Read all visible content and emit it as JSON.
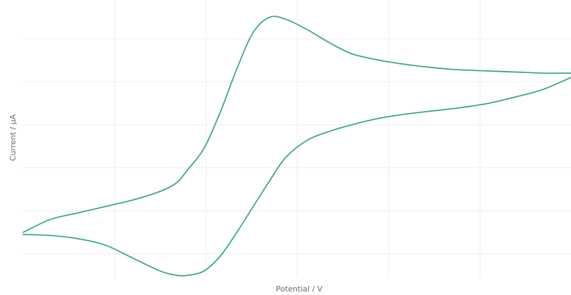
{
  "chart_data": {
    "type": "line",
    "xlabel": "Potential / V",
    "ylabel": "Current / µA",
    "xlim": [
      0,
      1
    ],
    "ylim": [
      -0.21,
      1.08
    ],
    "grid": true,
    "x_gridlines": [
      0.167,
      0.334,
      0.5,
      0.667,
      0.834
    ],
    "y_gridlines": [
      -0.1,
      0.1,
      0.3,
      0.5,
      0.7,
      0.9
    ],
    "line_color": "#3aa88e",
    "series": [
      {
        "x": [
          0.0,
          0.05,
          0.1,
          0.15,
          0.2,
          0.25,
          0.28,
          0.3,
          0.33,
          0.36,
          0.39,
          0.42,
          0.45,
          0.48,
          0.52,
          0.56,
          0.6,
          0.65,
          0.7,
          0.75,
          0.8,
          0.85,
          0.9,
          0.95,
          1.0
        ],
        "y": [
          0.0,
          0.06,
          0.09,
          0.12,
          0.15,
          0.19,
          0.23,
          0.29,
          0.39,
          0.56,
          0.76,
          0.93,
          1.0,
          0.99,
          0.94,
          0.88,
          0.83,
          0.8,
          0.78,
          0.765,
          0.755,
          0.75,
          0.745,
          0.74,
          0.74
        ]
      },
      {
        "x": [
          1.0,
          0.95,
          0.9,
          0.85,
          0.8,
          0.75,
          0.7,
          0.65,
          0.6,
          0.56,
          0.52,
          0.48,
          0.45,
          0.42,
          0.39,
          0.36,
          0.33,
          0.3,
          0.28,
          0.25,
          0.2,
          0.15,
          0.1,
          0.05,
          0.0
        ],
        "y": [
          0.72,
          0.665,
          0.63,
          0.6,
          0.58,
          0.565,
          0.55,
          0.53,
          0.5,
          0.47,
          0.43,
          0.35,
          0.24,
          0.12,
          0.0,
          -0.11,
          -0.18,
          -0.2,
          -0.2,
          -0.18,
          -0.12,
          -0.06,
          -0.03,
          -0.015,
          -0.01
        ]
      }
    ]
  }
}
